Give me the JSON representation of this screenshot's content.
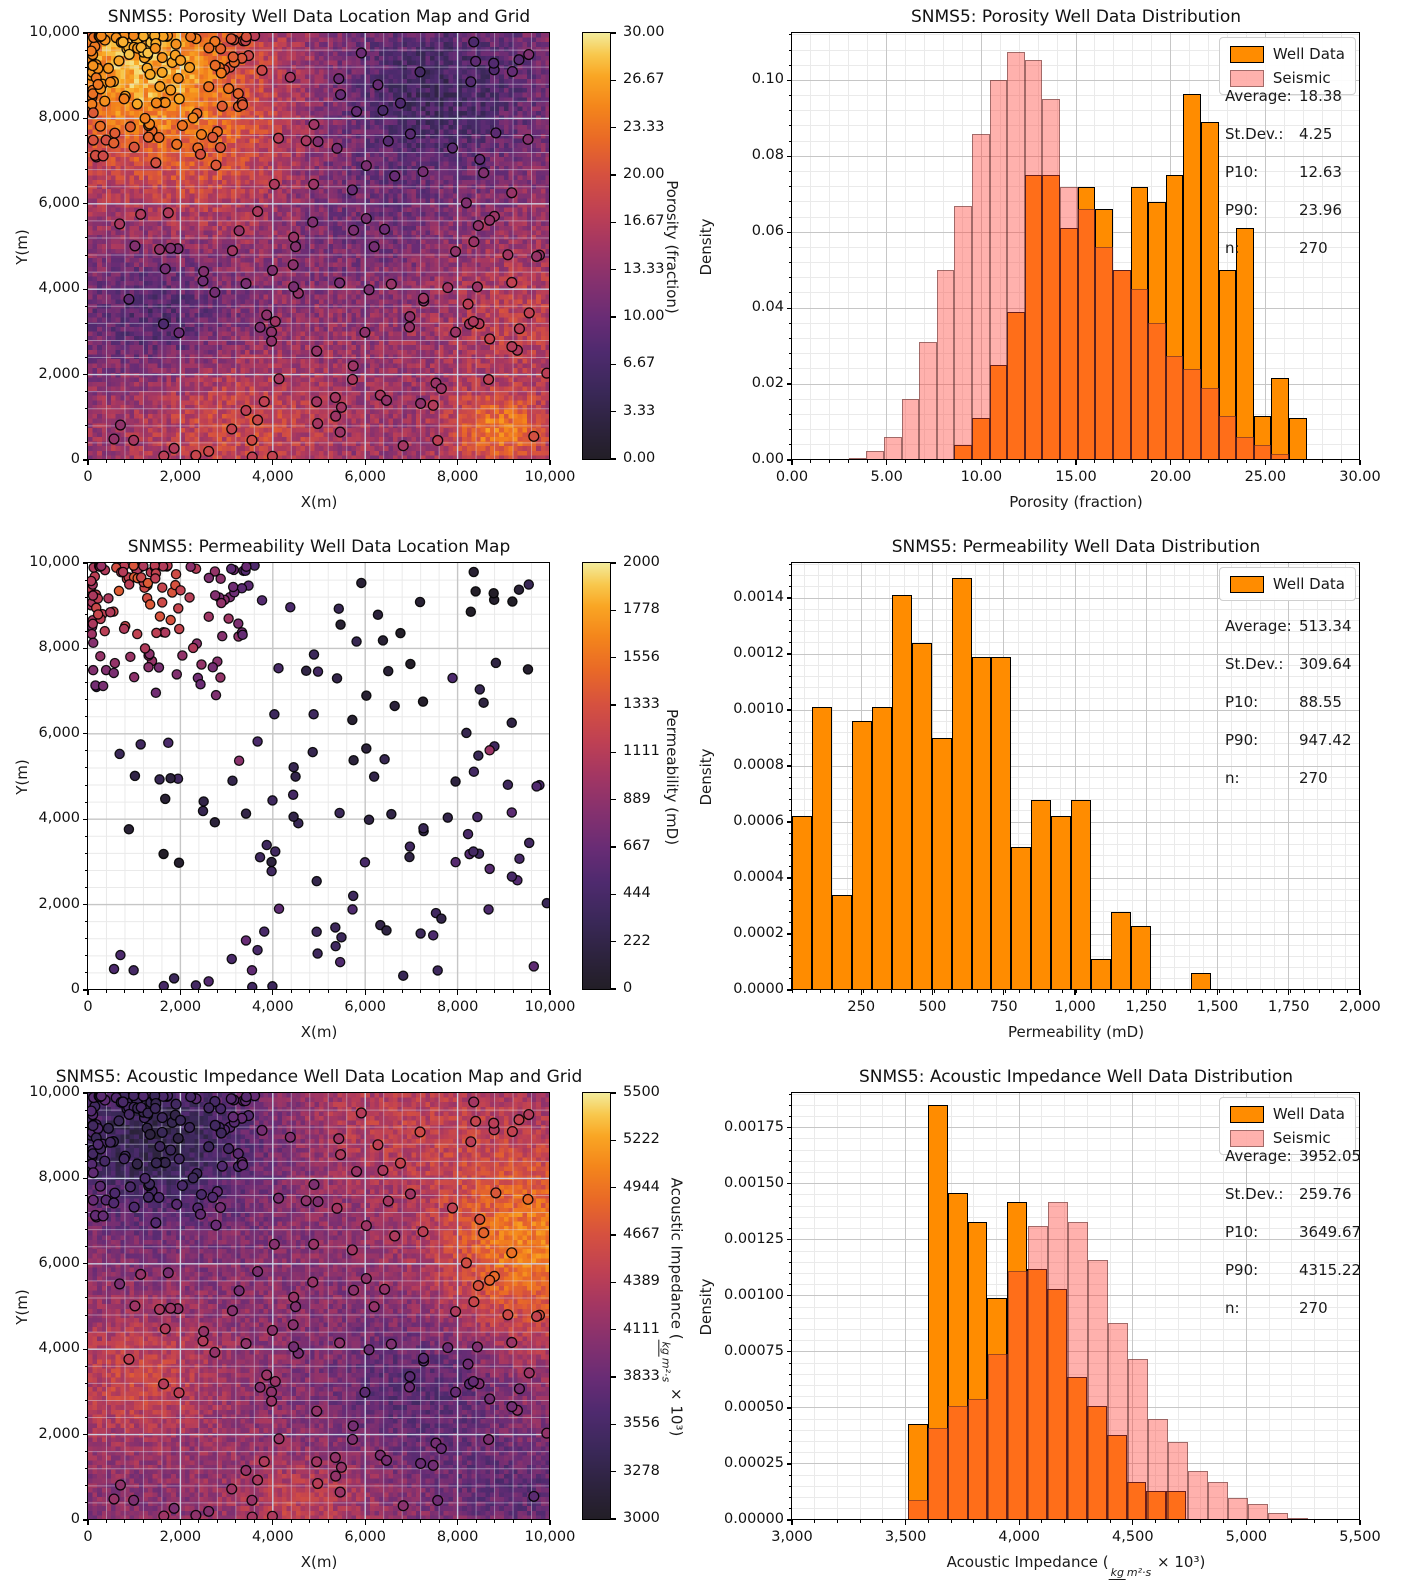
{
  "palette": {
    "well_data_fill": "#ff8c00",
    "well_data_edge": "#000000",
    "seismic_fill": "rgba(255,70,60,0.42)",
    "seismic_edge": "rgba(70,35,35,0.5)",
    "hist_grid_major": "#c6c6c6",
    "hist_grid_minor": "#eaeaea",
    "map_grid_major": "rgba(206,213,230,0.95)",
    "map_grid_minor": "rgba(220,225,238,0.45)",
    "colormap_stops": [
      [
        0.0,
        34,
        30,
        38
      ],
      [
        0.08,
        45,
        35,
        62
      ],
      [
        0.16,
        58,
        40,
        88
      ],
      [
        0.25,
        78,
        42,
        110
      ],
      [
        0.33,
        104,
        44,
        117
      ],
      [
        0.42,
        134,
        49,
        110
      ],
      [
        0.5,
        162,
        54,
        99
      ],
      [
        0.58,
        190,
        64,
        84
      ],
      [
        0.67,
        214,
        81,
        63
      ],
      [
        0.75,
        233,
        105,
        39
      ],
      [
        0.83,
        244,
        134,
        27
      ],
      [
        0.9,
        249,
        166,
        36
      ],
      [
        0.95,
        248,
        199,
        76
      ],
      [
        1.0,
        243,
        235,
        154
      ]
    ]
  },
  "chart_data": [
    {
      "kind": "map",
      "map_type": "heatmap_with_wells",
      "title": "SNMS5: Porosity Well Data Location Map and Grid",
      "xlabel": "X(m)",
      "ylabel": "Y(m)",
      "xlim": [
        0,
        10000
      ],
      "ylim": [
        0,
        10000
      ],
      "xtick_values": [
        0,
        2000,
        4000,
        6000,
        8000,
        10000
      ],
      "xtick_labels": [
        "0",
        "2,000",
        "4,000",
        "6,000",
        "8,000",
        "10,000"
      ],
      "ytick_values": [
        0,
        2000,
        4000,
        6000,
        8000,
        10000
      ],
      "ytick_labels": [
        "0",
        "2,000",
        "4,000",
        "6,000",
        "8,000",
        "10,000"
      ],
      "minor_step": 400,
      "colorbar": {
        "label": "Porosity (fraction)",
        "vmin": 0,
        "vmax": 30,
        "tick_labels_top_to_bottom": [
          "30.00",
          "26.67",
          "23.33",
          "20.00",
          "16.67",
          "13.33",
          "10.00",
          "6.67",
          "3.33",
          "0.00"
        ]
      },
      "wells": {
        "n": 270,
        "pattern": "dense cluster in upper-left quadrant plus sparse uniform coverage",
        "marker": "circle, black edge, fill colored by porosity value"
      },
      "field_model": {
        "base": 14,
        "noise": 3.2,
        "clamp": [
          0.4,
          29.6
        ],
        "gaussians": [
          [
            13,
            1100,
            2400,
            9400,
            2100
          ],
          [
            4.5,
            2800,
            2200,
            7200,
            1800
          ],
          [
            -8,
            7600,
            2400,
            8700,
            2000
          ],
          [
            -6,
            1400,
            1800,
            3400,
            1500
          ],
          [
            5,
            3200,
            2000,
            900,
            1400
          ],
          [
            10,
            8900,
            1100,
            700,
            800
          ],
          [
            3.5,
            9300,
            1600,
            3200,
            1600
          ],
          [
            -3,
            5800,
            2000,
            5600,
            1900
          ]
        ]
      }
    },
    {
      "kind": "hist",
      "type": "bar",
      "title": "SNMS5: Porosity Well Data Distribution",
      "xlabel": "Porosity (fraction)",
      "ylabel": "Density",
      "xlim": [
        0,
        30
      ],
      "ylim": [
        0,
        0.1125
      ],
      "xtick_values": [
        0,
        5,
        10,
        15,
        20,
        25,
        30
      ],
      "xtick_labels": [
        "0.00",
        "5.00",
        "10.00",
        "15.00",
        "20.00",
        "25.00",
        "30.00"
      ],
      "ytick_values": [
        0,
        0.02,
        0.04,
        0.06,
        0.08,
        0.1
      ],
      "ytick_labels": [
        "0.00",
        "0.02",
        "0.04",
        "0.06",
        "0.08",
        "0.10"
      ],
      "x_minor_step": 1,
      "y_minor_step": 0.004,
      "legend": [
        "Well Data",
        "Seismic"
      ],
      "legend_position": "upper right",
      "stats": [
        {
          "label": "Average:",
          "value": "18.38"
        },
        {
          "label": "St.Dev.:",
          "value": "4.25"
        },
        {
          "label": "P10:",
          "value": "12.63"
        },
        {
          "label": "P90:",
          "value": "23.96"
        },
        {
          "label": "n:",
          "value": "270"
        }
      ],
      "series": [
        {
          "name": "Well Data",
          "style": "well",
          "bin_start": 8.58,
          "bin_width": 0.93,
          "values": [
            0.004,
            0.011,
            0.025,
            0.039,
            0.075,
            0.075,
            0.061,
            0.072,
            0.066,
            0.05,
            0.072,
            0.068,
            0.075,
            0.0965,
            0.089,
            0.05,
            0.061,
            0.0115,
            0.0215,
            0.011
          ]
        },
        {
          "name": "Seismic",
          "style": "seismic",
          "bin_start": 3.0,
          "bin_width": 0.93,
          "values": [
            0.0005,
            0.0025,
            0.006,
            0.016,
            0.031,
            0.05,
            0.067,
            0.086,
            0.1,
            0.1075,
            0.1055,
            0.095,
            0.072,
            0.066,
            0.056,
            0.05,
            0.045,
            0.036,
            0.0275,
            0.024,
            0.019,
            0.0115,
            0.006,
            0.004,
            0.0015
          ]
        }
      ]
    },
    {
      "kind": "map",
      "map_type": "well_scatter",
      "title": "SNMS5: Permeability Well Data Location Map",
      "xlabel": "X(m)",
      "ylabel": "Y(m)",
      "xlim": [
        0,
        10000
      ],
      "ylim": [
        0,
        10000
      ],
      "xtick_values": [
        0,
        2000,
        4000,
        6000,
        8000,
        10000
      ],
      "xtick_labels": [
        "0",
        "2,000",
        "4,000",
        "6,000",
        "8,000",
        "10,000"
      ],
      "ytick_values": [
        0,
        2000,
        4000,
        6000,
        8000,
        10000
      ],
      "ytick_labels": [
        "0",
        "2,000",
        "4,000",
        "6,000",
        "8,000",
        "10,000"
      ],
      "minor_step": 400,
      "colorbar": {
        "label": "Permeability (mD)",
        "vmin": 0,
        "vmax": 2000,
        "tick_labels_top_to_bottom": [
          "2000",
          "1778",
          "1556",
          "1333",
          "1111",
          "889",
          "667",
          "444",
          "222",
          "0"
        ]
      },
      "wells": {
        "n": 270,
        "pattern": "same well locations as porosity map; most values 50-700 mD (dark purple), cluster in upper-left shows 700-1400 mD (pink/salmon), rare orange outliers",
        "marker": "circle, black edge, fill colored by permeability value"
      }
    },
    {
      "kind": "hist",
      "type": "bar",
      "title": "SNMS5: Permeability Well Data Distribution",
      "xlabel": "Permeability (mD)",
      "ylabel": "Density",
      "xlim": [
        7,
        2000
      ],
      "ylim": [
        0,
        0.001525
      ],
      "xtick_values": [
        250,
        500,
        750,
        1000,
        1250,
        1500,
        1750,
        2000
      ],
      "xtick_labels": [
        "250",
        "500",
        "750",
        "1,000",
        "1,250",
        "1,500",
        "1,750",
        "2,000"
      ],
      "ytick_values": [
        0,
        0.0002,
        0.0004,
        0.0006,
        0.0008,
        0.001,
        0.0012,
        0.0014
      ],
      "ytick_labels": [
        "0.0000",
        "0.0002",
        "0.0004",
        "0.0006",
        "0.0008",
        "0.0010",
        "0.0012",
        "0.0014"
      ],
      "x_minor_step": 50,
      "y_minor_step": 4e-05,
      "legend": [
        "Well Data"
      ],
      "legend_position": "upper right",
      "stats": [
        {
          "label": "Average:",
          "value": "513.34"
        },
        {
          "label": "St.Dev.:",
          "value": "309.64"
        },
        {
          "label": "P10:",
          "value": "88.55"
        },
        {
          "label": "P90:",
          "value": "947.42"
        },
        {
          "label": "n:",
          "value": "270"
        }
      ],
      "series": [
        {
          "name": "Well Data",
          "style": "well",
          "bin_start": 7,
          "bin_width": 70,
          "values": [
            0.00062,
            0.00101,
            0.00034,
            0.00096,
            0.00101,
            0.00141,
            0.00124,
            0.0009,
            0.00147,
            0.00119,
            0.00119,
            0.00051,
            0.00068,
            0.00062,
            0.00068,
            0.00011,
            0.00028,
            0.00023,
            0,
            0,
            6e-05
          ]
        }
      ]
    },
    {
      "kind": "map",
      "map_type": "heatmap_with_wells",
      "title": "SNMS5: Acoustic Impedance Well Data Location Map and Grid",
      "xlabel": "X(m)",
      "ylabel": "Y(m)",
      "xlim": [
        0,
        10000
      ],
      "ylim": [
        0,
        10000
      ],
      "xtick_values": [
        0,
        2000,
        4000,
        6000,
        8000,
        10000
      ],
      "xtick_labels": [
        "0",
        "2,000",
        "4,000",
        "6,000",
        "8,000",
        "10,000"
      ],
      "ytick_values": [
        0,
        2000,
        4000,
        6000,
        8000,
        10000
      ],
      "ytick_labels": [
        "0",
        "2,000",
        "4,000",
        "6,000",
        "8,000",
        "10,000"
      ],
      "minor_step": 400,
      "colorbar": {
        "label_parts": {
          "prefix": "Acoustic Impedance (",
          "frac_num": "kg",
          "frac_den": "m²·s",
          "suffix": " × 10³)"
        },
        "vmin": 3000,
        "vmax": 5500,
        "tick_labels_top_to_bottom": [
          "5500",
          "5222",
          "4944",
          "4667",
          "4389",
          "4111",
          "3833",
          "3556",
          "3278",
          "3000"
        ]
      },
      "wells": {
        "n": 270,
        "pattern": "same well locations as porosity map",
        "marker": "circle, black edge, fill colored by acoustic impedance value"
      },
      "field_model": {
        "base": 4070,
        "noise": 230,
        "clamp": [
          3040,
          5470
        ],
        "gaussians": [
          [
            -750,
            1500,
            2300,
            8900,
            1900
          ],
          [
            950,
            9600,
            2100,
            6400,
            2300
          ],
          [
            350,
            6800,
            2600,
            9300,
            1700
          ],
          [
            480,
            1100,
            1700,
            3300,
            1500
          ],
          [
            380,
            4600,
            1500,
            400,
            1100
          ],
          [
            -380,
            7300,
            1900,
            3100,
            1700
          ],
          [
            -300,
            9300,
            1600,
            700,
            1100
          ]
        ]
      }
    },
    {
      "kind": "hist",
      "type": "bar",
      "title": "SNMS5: Acoustic Impedance Well Data Distribution",
      "xlabel_parts": {
        "prefix": "Acoustic Impedance (",
        "frac_num": "kg",
        "frac_den": "m²·s",
        "suffix": " × 10³)"
      },
      "ylabel": "Density",
      "xlim": [
        3000,
        5500
      ],
      "ylim": [
        0,
        0.001905
      ],
      "xtick_values": [
        3000,
        3500,
        4000,
        4500,
        5000,
        5500
      ],
      "xtick_labels": [
        "3,000",
        "3,500",
        "4,000",
        "4,500",
        "5,000",
        "5,500"
      ],
      "ytick_values": [
        0,
        0.00025,
        0.0005,
        0.00075,
        0.001,
        0.00125,
        0.0015,
        0.00175
      ],
      "ytick_labels": [
        "0.00000",
        "0.00025",
        "0.00050",
        "0.00075",
        "0.00100",
        "0.00125",
        "0.00150",
        "0.00175"
      ],
      "x_minor_step": 100,
      "y_minor_step": 5e-05,
      "legend": [
        "Well Data",
        "Seismic"
      ],
      "legend_position": "upper right",
      "stats": [
        {
          "label": "Average:",
          "value": "3952.05"
        },
        {
          "label": "St.Dev.:",
          "value": "259.76"
        },
        {
          "label": "P10:",
          "value": "3649.67"
        },
        {
          "label": "P90:",
          "value": "4315.22"
        },
        {
          "label": "n:",
          "value": "270"
        }
      ],
      "series": [
        {
          "name": "Well Data",
          "style": "well",
          "bin_start": 3510,
          "bin_width": 87.5,
          "values": [
            0.00043,
            0.00185,
            0.00146,
            0.00133,
            0.00099,
            0.00142,
            0.00112,
            0.00103,
            0.00064,
            0.00051,
            0.00038,
            0.00017,
            0.00013,
            0.00013
          ]
        },
        {
          "name": "Seismic",
          "style": "seismic",
          "bin_start": 3510,
          "bin_width": 88,
          "values": [
            9e-05,
            0.00041,
            0.00051,
            0.00054,
            0.00074,
            0.00111,
            0.00131,
            0.00142,
            0.00133,
            0.00116,
            0.00088,
            0.00072,
            0.00045,
            0.00035,
            0.00022,
            0.00017,
            0.0001,
            7e-05,
            3e-05,
            1e-05
          ]
        }
      ]
    }
  ]
}
